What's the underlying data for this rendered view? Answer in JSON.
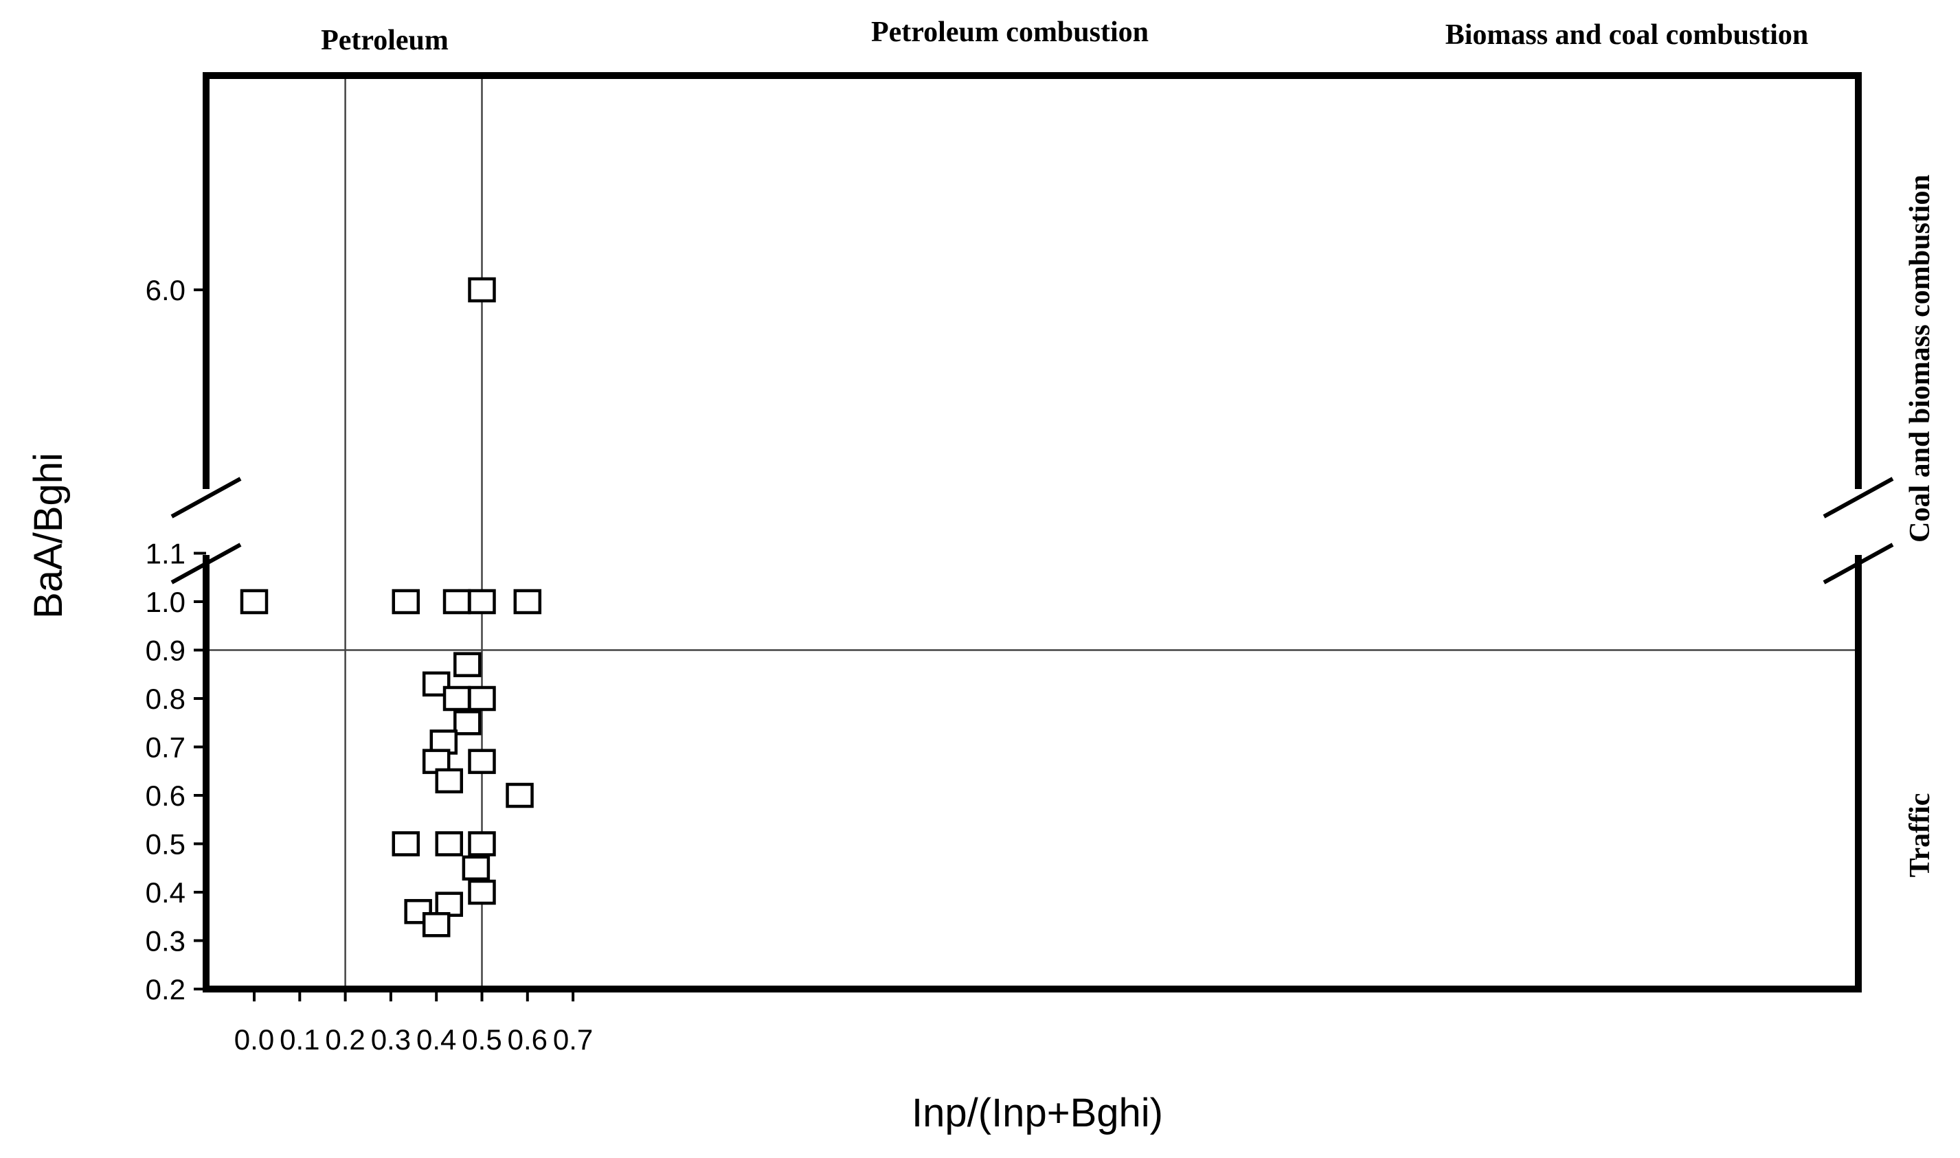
{
  "chart_data": {
    "type": "scatter",
    "xlabel": "Inp/(Inp+Bghi)",
    "ylabel": "BaA/Bghi",
    "xlim": [
      -0.02,
      0.7
    ],
    "x_ticks": [
      "0.0",
      "0.1",
      "0.2",
      "0.3",
      "0.4",
      "0.5",
      "0.6",
      "0.7"
    ],
    "y_ticks_lower": [
      "0.2",
      "0.3",
      "0.4",
      "0.5",
      "0.6",
      "0.7",
      "0.8",
      "0.9",
      "1.0",
      "1.1"
    ],
    "y_ticks_upper": [
      "6.0"
    ],
    "y_axis_break": [
      1.1,
      6.0
    ],
    "grid": false,
    "reference_lines": {
      "x": [
        0.2,
        0.5
      ],
      "y": [
        0.9
      ]
    },
    "region_labels": {
      "top": [
        "Petroleum",
        "Petroleum combustion",
        "Biomass and coal combustion"
      ],
      "right": [
        "Coal and biomass combustion",
        "Traffic"
      ]
    },
    "marker": "open-square",
    "points": [
      {
        "x": 0.0,
        "y": 1.0
      },
      {
        "x": 0.333,
        "y": 1.0
      },
      {
        "x": 0.445,
        "y": 1.0
      },
      {
        "x": 0.5,
        "y": 1.0
      },
      {
        "x": 0.6,
        "y": 1.0
      },
      {
        "x": 0.5,
        "y": 6.0
      },
      {
        "x": 0.468,
        "y": 0.87
      },
      {
        "x": 0.4,
        "y": 0.83
      },
      {
        "x": 0.445,
        "y": 0.8
      },
      {
        "x": 0.5,
        "y": 0.8
      },
      {
        "x": 0.468,
        "y": 0.75
      },
      {
        "x": 0.416,
        "y": 0.71
      },
      {
        "x": 0.4,
        "y": 0.67
      },
      {
        "x": 0.5,
        "y": 0.67
      },
      {
        "x": 0.428,
        "y": 0.63
      },
      {
        "x": 0.583,
        "y": 0.6
      },
      {
        "x": 0.333,
        "y": 0.5
      },
      {
        "x": 0.428,
        "y": 0.5
      },
      {
        "x": 0.5,
        "y": 0.5
      },
      {
        "x": 0.487,
        "y": 0.45
      },
      {
        "x": 0.5,
        "y": 0.4
      },
      {
        "x": 0.428,
        "y": 0.375
      },
      {
        "x": 0.36,
        "y": 0.36
      },
      {
        "x": 0.4,
        "y": 0.333
      }
    ]
  }
}
